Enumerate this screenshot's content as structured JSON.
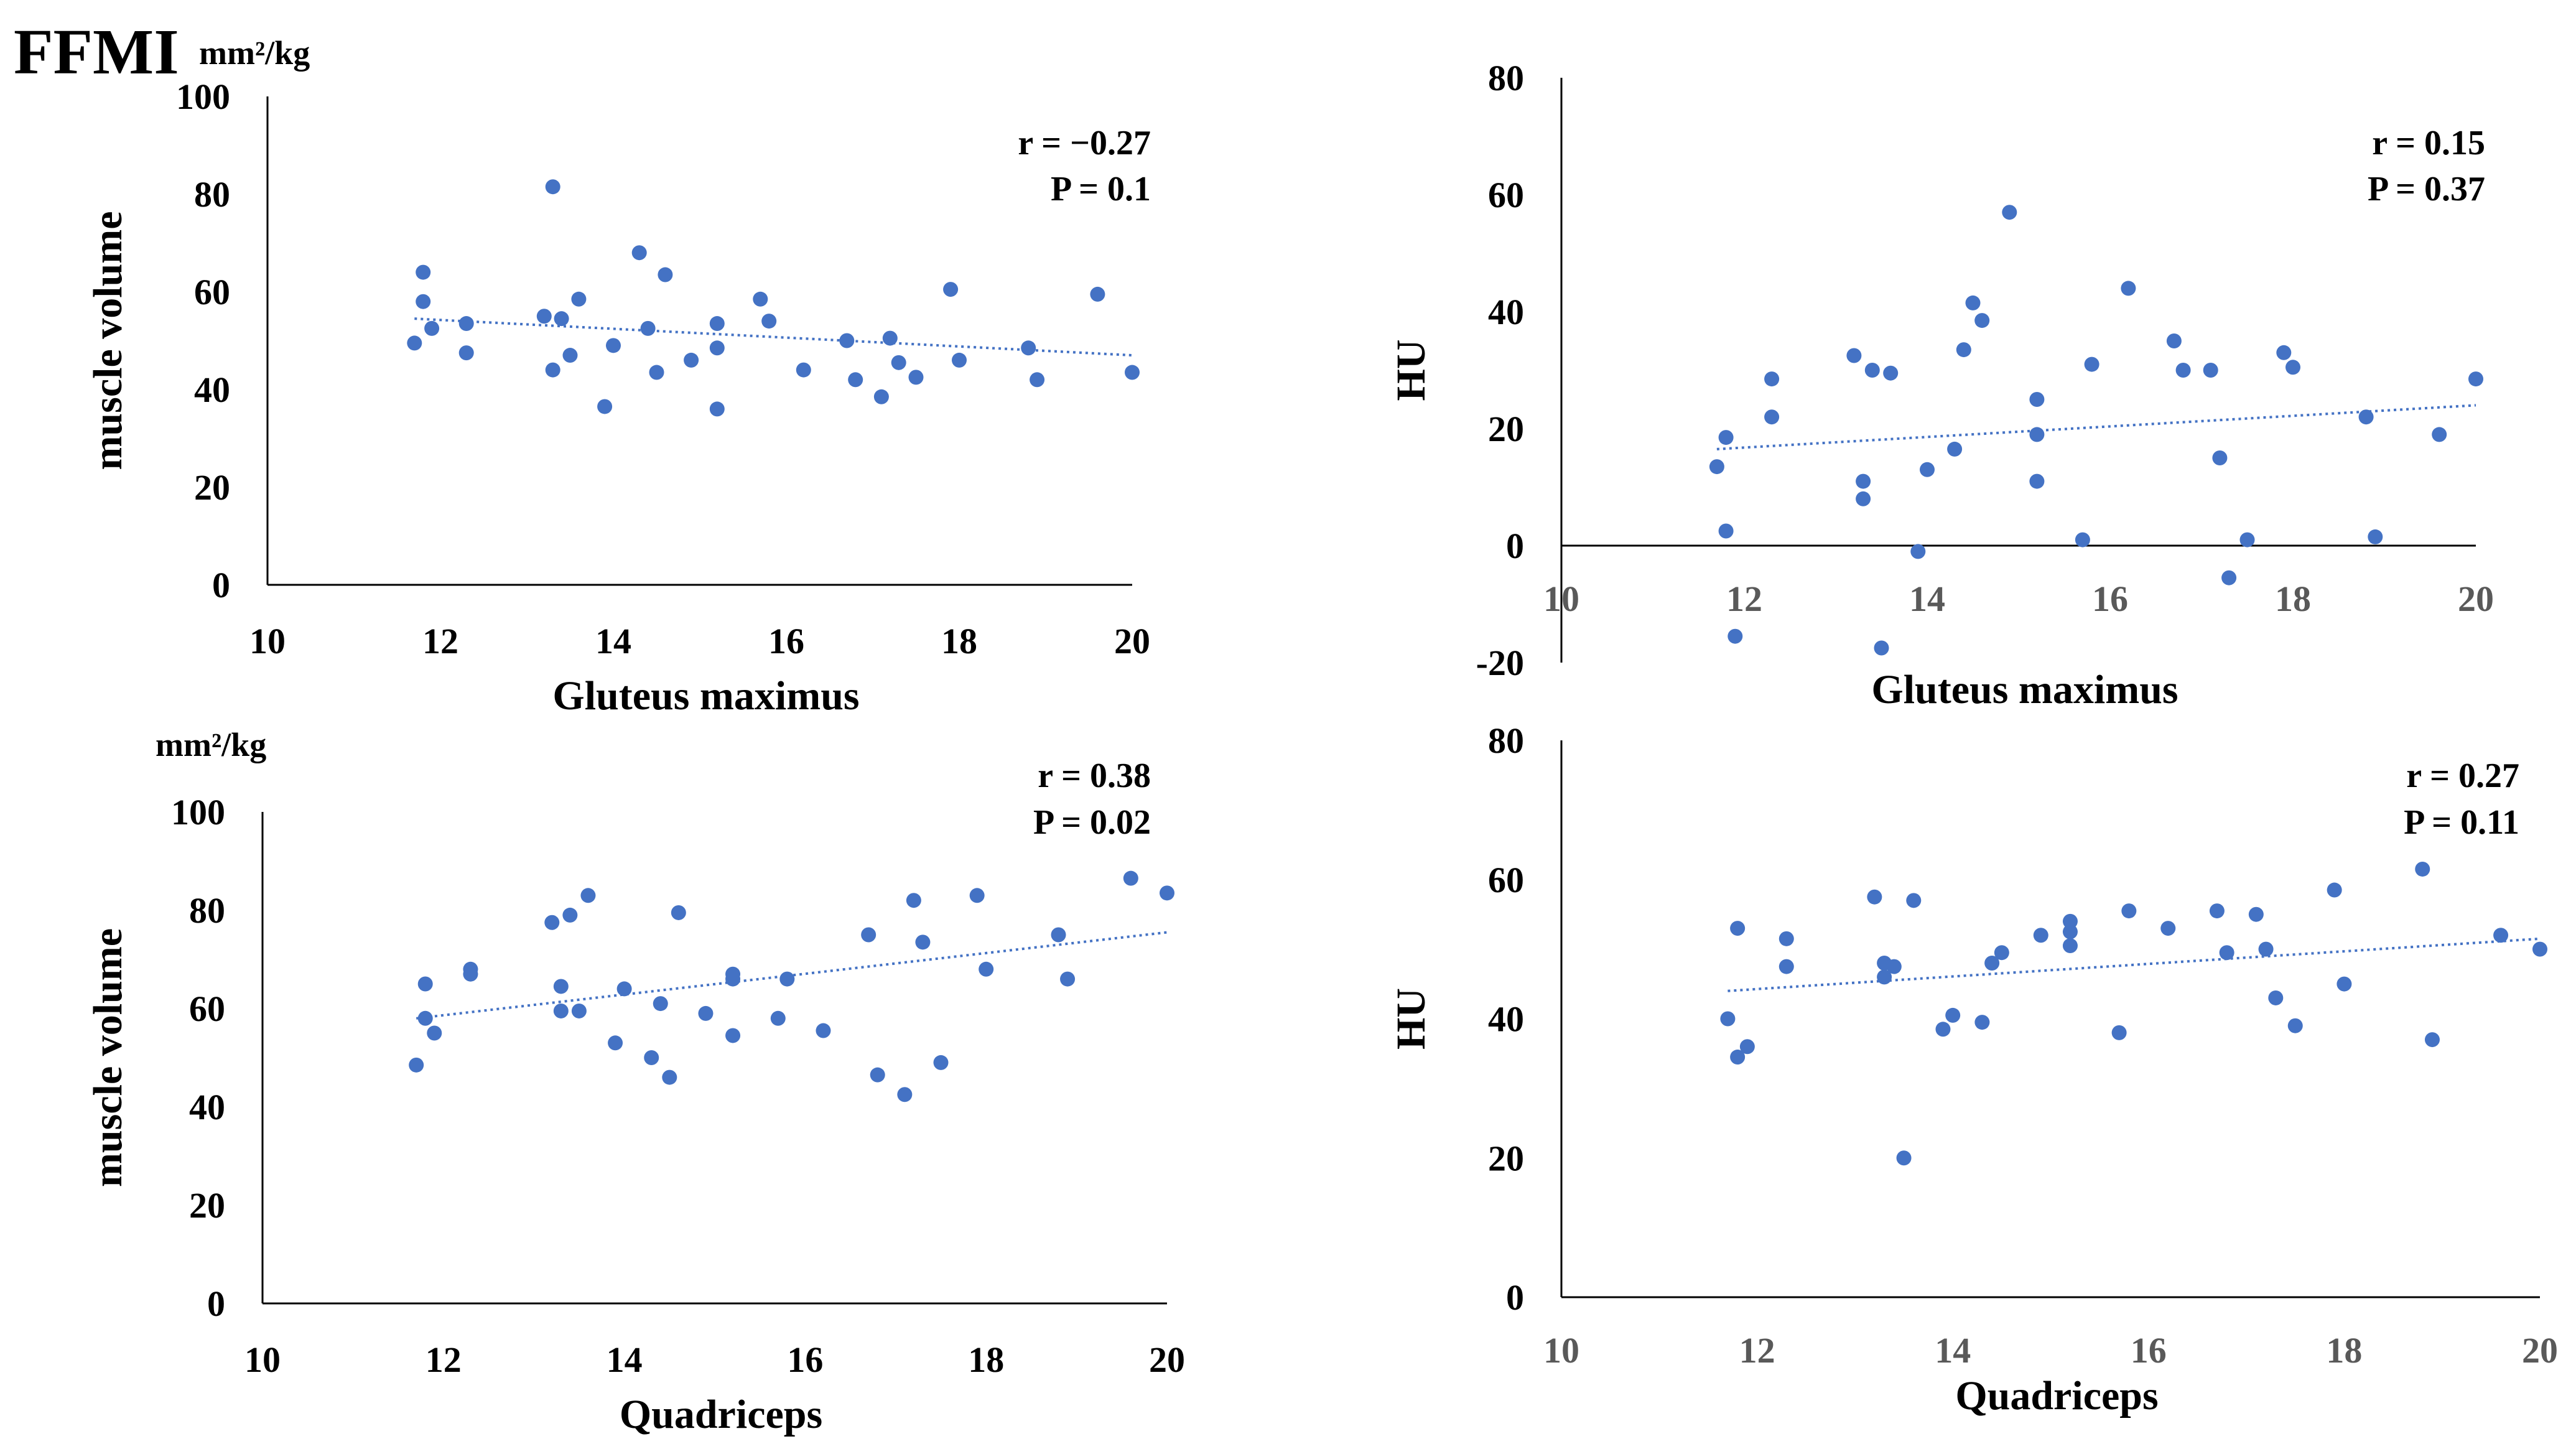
{
  "figure": {
    "title": "FFMI",
    "unit_top": "mm²/kg",
    "unit_bottom": "mm²/kg"
  },
  "colors": {
    "point": "#4472C4",
    "trend": "#4472C4",
    "axis": "#000000"
  },
  "chart_data": [
    {
      "type": "scatter",
      "xlabel": "Gluteus maximus",
      "ylabel": "muscle volume",
      "xlim": [
        10,
        20
      ],
      "ylim": [
        0,
        100
      ],
      "xticks": [
        "10",
        "12",
        "14",
        "16",
        "18",
        "20"
      ],
      "yticks": [
        "0",
        "20",
        "40",
        "60",
        "80",
        "100"
      ],
      "r_text": "r = −0.27",
      "p_text": "P = 0.1",
      "trendline": [
        [
          11.7,
          54.5
        ],
        [
          20,
          47
        ]
      ],
      "points": [
        [
          11.7,
          49.5
        ],
        [
          11.8,
          64
        ],
        [
          11.8,
          58
        ],
        [
          11.9,
          52.5
        ],
        [
          12.3,
          53.5
        ],
        [
          12.3,
          47.5
        ],
        [
          13.2,
          55
        ],
        [
          13.3,
          44
        ],
        [
          13.3,
          81.5
        ],
        [
          13.4,
          54.5
        ],
        [
          13.5,
          47
        ],
        [
          13.6,
          58.5
        ],
        [
          13.9,
          36.5
        ],
        [
          14.0,
          49
        ],
        [
          14.3,
          68
        ],
        [
          14.4,
          52.5
        ],
        [
          14.5,
          43.5
        ],
        [
          14.6,
          63.5
        ],
        [
          14.9,
          46
        ],
        [
          15.2,
          53.5
        ],
        [
          15.2,
          48.5
        ],
        [
          15.2,
          36
        ],
        [
          15.7,
          58.5
        ],
        [
          15.8,
          54
        ],
        [
          16.2,
          44
        ],
        [
          16.7,
          50
        ],
        [
          16.8,
          42
        ],
        [
          17.1,
          38.5
        ],
        [
          17.2,
          50.5
        ],
        [
          17.3,
          45.5
        ],
        [
          17.5,
          42.5
        ],
        [
          17.9,
          60.5
        ],
        [
          18.0,
          46
        ],
        [
          18.8,
          48.5
        ],
        [
          18.9,
          42
        ],
        [
          19.6,
          59.5
        ],
        [
          20.0,
          43.5
        ]
      ]
    },
    {
      "type": "scatter",
      "xlabel": "Gluteus maximus",
      "ylabel": "HU",
      "xlim": [
        10,
        20
      ],
      "ylim": [
        -20,
        80
      ],
      "xticks": [
        "10",
        "12",
        "14",
        "16",
        "18",
        "20"
      ],
      "yticks": [
        "-20",
        "0",
        "20",
        "40",
        "60",
        "80"
      ],
      "r_text": "r = 0.15",
      "p_text": "P = 0.37",
      "trendline": [
        [
          11.7,
          16.5
        ],
        [
          20,
          24
        ]
      ],
      "points": [
        [
          11.7,
          13.5
        ],
        [
          11.8,
          18.5
        ],
        [
          11.8,
          2.5
        ],
        [
          11.9,
          -15.5
        ],
        [
          12.3,
          28.5
        ],
        [
          12.3,
          22
        ],
        [
          13.2,
          32.5
        ],
        [
          13.3,
          8
        ],
        [
          13.3,
          11
        ],
        [
          13.4,
          30
        ],
        [
          13.5,
          -17.5
        ],
        [
          13.6,
          29.5
        ],
        [
          13.9,
          -1
        ],
        [
          14.0,
          13
        ],
        [
          14.3,
          16.5
        ],
        [
          14.4,
          33.5
        ],
        [
          14.5,
          41.5
        ],
        [
          14.6,
          38.5
        ],
        [
          14.9,
          57
        ],
        [
          15.2,
          25
        ],
        [
          15.2,
          19
        ],
        [
          15.2,
          11
        ],
        [
          15.7,
          1
        ],
        [
          15.8,
          31
        ],
        [
          16.2,
          44
        ],
        [
          16.7,
          35
        ],
        [
          16.8,
          30
        ],
        [
          17.1,
          30
        ],
        [
          17.2,
          15
        ],
        [
          17.3,
          -5.5
        ],
        [
          17.5,
          1
        ],
        [
          17.9,
          33
        ],
        [
          18.0,
          30.5
        ],
        [
          18.8,
          22
        ],
        [
          18.9,
          1.5
        ],
        [
          19.6,
          19
        ],
        [
          20.0,
          28.5
        ]
      ]
    },
    {
      "type": "scatter",
      "xlabel": "Quadriceps",
      "ylabel": "muscle volume",
      "xlim": [
        10,
        20
      ],
      "ylim": [
        0,
        100
      ],
      "xticks": [
        "10",
        "12",
        "14",
        "16",
        "18",
        "20"
      ],
      "yticks": [
        "0",
        "20",
        "40",
        "60",
        "80",
        "100"
      ],
      "r_text": "r = 0.38",
      "p_text": "P = 0.02",
      "trendline": [
        [
          11.7,
          58
        ],
        [
          20,
          75.5
        ]
      ],
      "points": [
        [
          11.7,
          48.5
        ],
        [
          11.8,
          65
        ],
        [
          11.8,
          58
        ],
        [
          11.9,
          55
        ],
        [
          12.3,
          68
        ],
        [
          12.3,
          67
        ],
        [
          13.2,
          77.5
        ],
        [
          13.3,
          64.5
        ],
        [
          13.3,
          59.5
        ],
        [
          13.4,
          79
        ],
        [
          13.5,
          59.5
        ],
        [
          13.6,
          83
        ],
        [
          13.9,
          53
        ],
        [
          14.0,
          64
        ],
        [
          14.3,
          50
        ],
        [
          14.4,
          61
        ],
        [
          14.5,
          46
        ],
        [
          14.6,
          79.5
        ],
        [
          14.9,
          59
        ],
        [
          15.2,
          67
        ],
        [
          15.2,
          54.5
        ],
        [
          15.2,
          66
        ],
        [
          15.7,
          58
        ],
        [
          15.8,
          66
        ],
        [
          16.2,
          55.5
        ],
        [
          16.7,
          75
        ],
        [
          16.8,
          46.5
        ],
        [
          17.1,
          42.5
        ],
        [
          17.2,
          82
        ],
        [
          17.3,
          73.5
        ],
        [
          17.5,
          49
        ],
        [
          17.9,
          83
        ],
        [
          18.0,
          68
        ],
        [
          18.8,
          75
        ],
        [
          18.9,
          66
        ],
        [
          19.6,
          86.5
        ],
        [
          20.0,
          83.5
        ]
      ]
    },
    {
      "type": "scatter",
      "xlabel": "Quadriceps",
      "ylabel": "HU",
      "xlim": [
        10,
        20
      ],
      "ylim": [
        0,
        80
      ],
      "xticks": [
        "10",
        "12",
        "14",
        "16",
        "18",
        "20"
      ],
      "yticks": [
        "0",
        "20",
        "40",
        "60",
        "80"
      ],
      "r_text": "r = 0.27",
      "p_text": "P = 0.11",
      "trendline": [
        [
          11.7,
          44
        ],
        [
          20,
          51.5
        ]
      ],
      "points": [
        [
          11.7,
          40
        ],
        [
          11.8,
          53
        ],
        [
          11.8,
          34.5
        ],
        [
          11.9,
          36
        ],
        [
          12.3,
          51.5
        ],
        [
          12.3,
          47.5
        ],
        [
          13.2,
          57.5
        ],
        [
          13.3,
          46
        ],
        [
          13.3,
          48
        ],
        [
          13.4,
          47.5
        ],
        [
          13.5,
          20
        ],
        [
          13.6,
          57
        ],
        [
          13.9,
          38.5
        ],
        [
          14.0,
          40.5
        ],
        [
          14.3,
          39.5
        ],
        [
          14.4,
          48
        ],
        [
          14.5,
          49.5
        ],
        [
          14.9,
          52
        ],
        [
          15.2,
          50.5
        ],
        [
          15.2,
          52.5
        ],
        [
          15.2,
          54
        ],
        [
          15.7,
          38
        ],
        [
          15.8,
          55.5
        ],
        [
          16.2,
          53
        ],
        [
          16.7,
          55.5
        ],
        [
          16.8,
          49.5
        ],
        [
          17.1,
          55
        ],
        [
          17.2,
          50
        ],
        [
          17.3,
          43
        ],
        [
          17.5,
          39
        ],
        [
          17.9,
          58.5
        ],
        [
          18.0,
          45
        ],
        [
          18.8,
          61.5
        ],
        [
          18.9,
          37
        ],
        [
          19.6,
          52
        ],
        [
          20.0,
          50
        ]
      ]
    }
  ]
}
